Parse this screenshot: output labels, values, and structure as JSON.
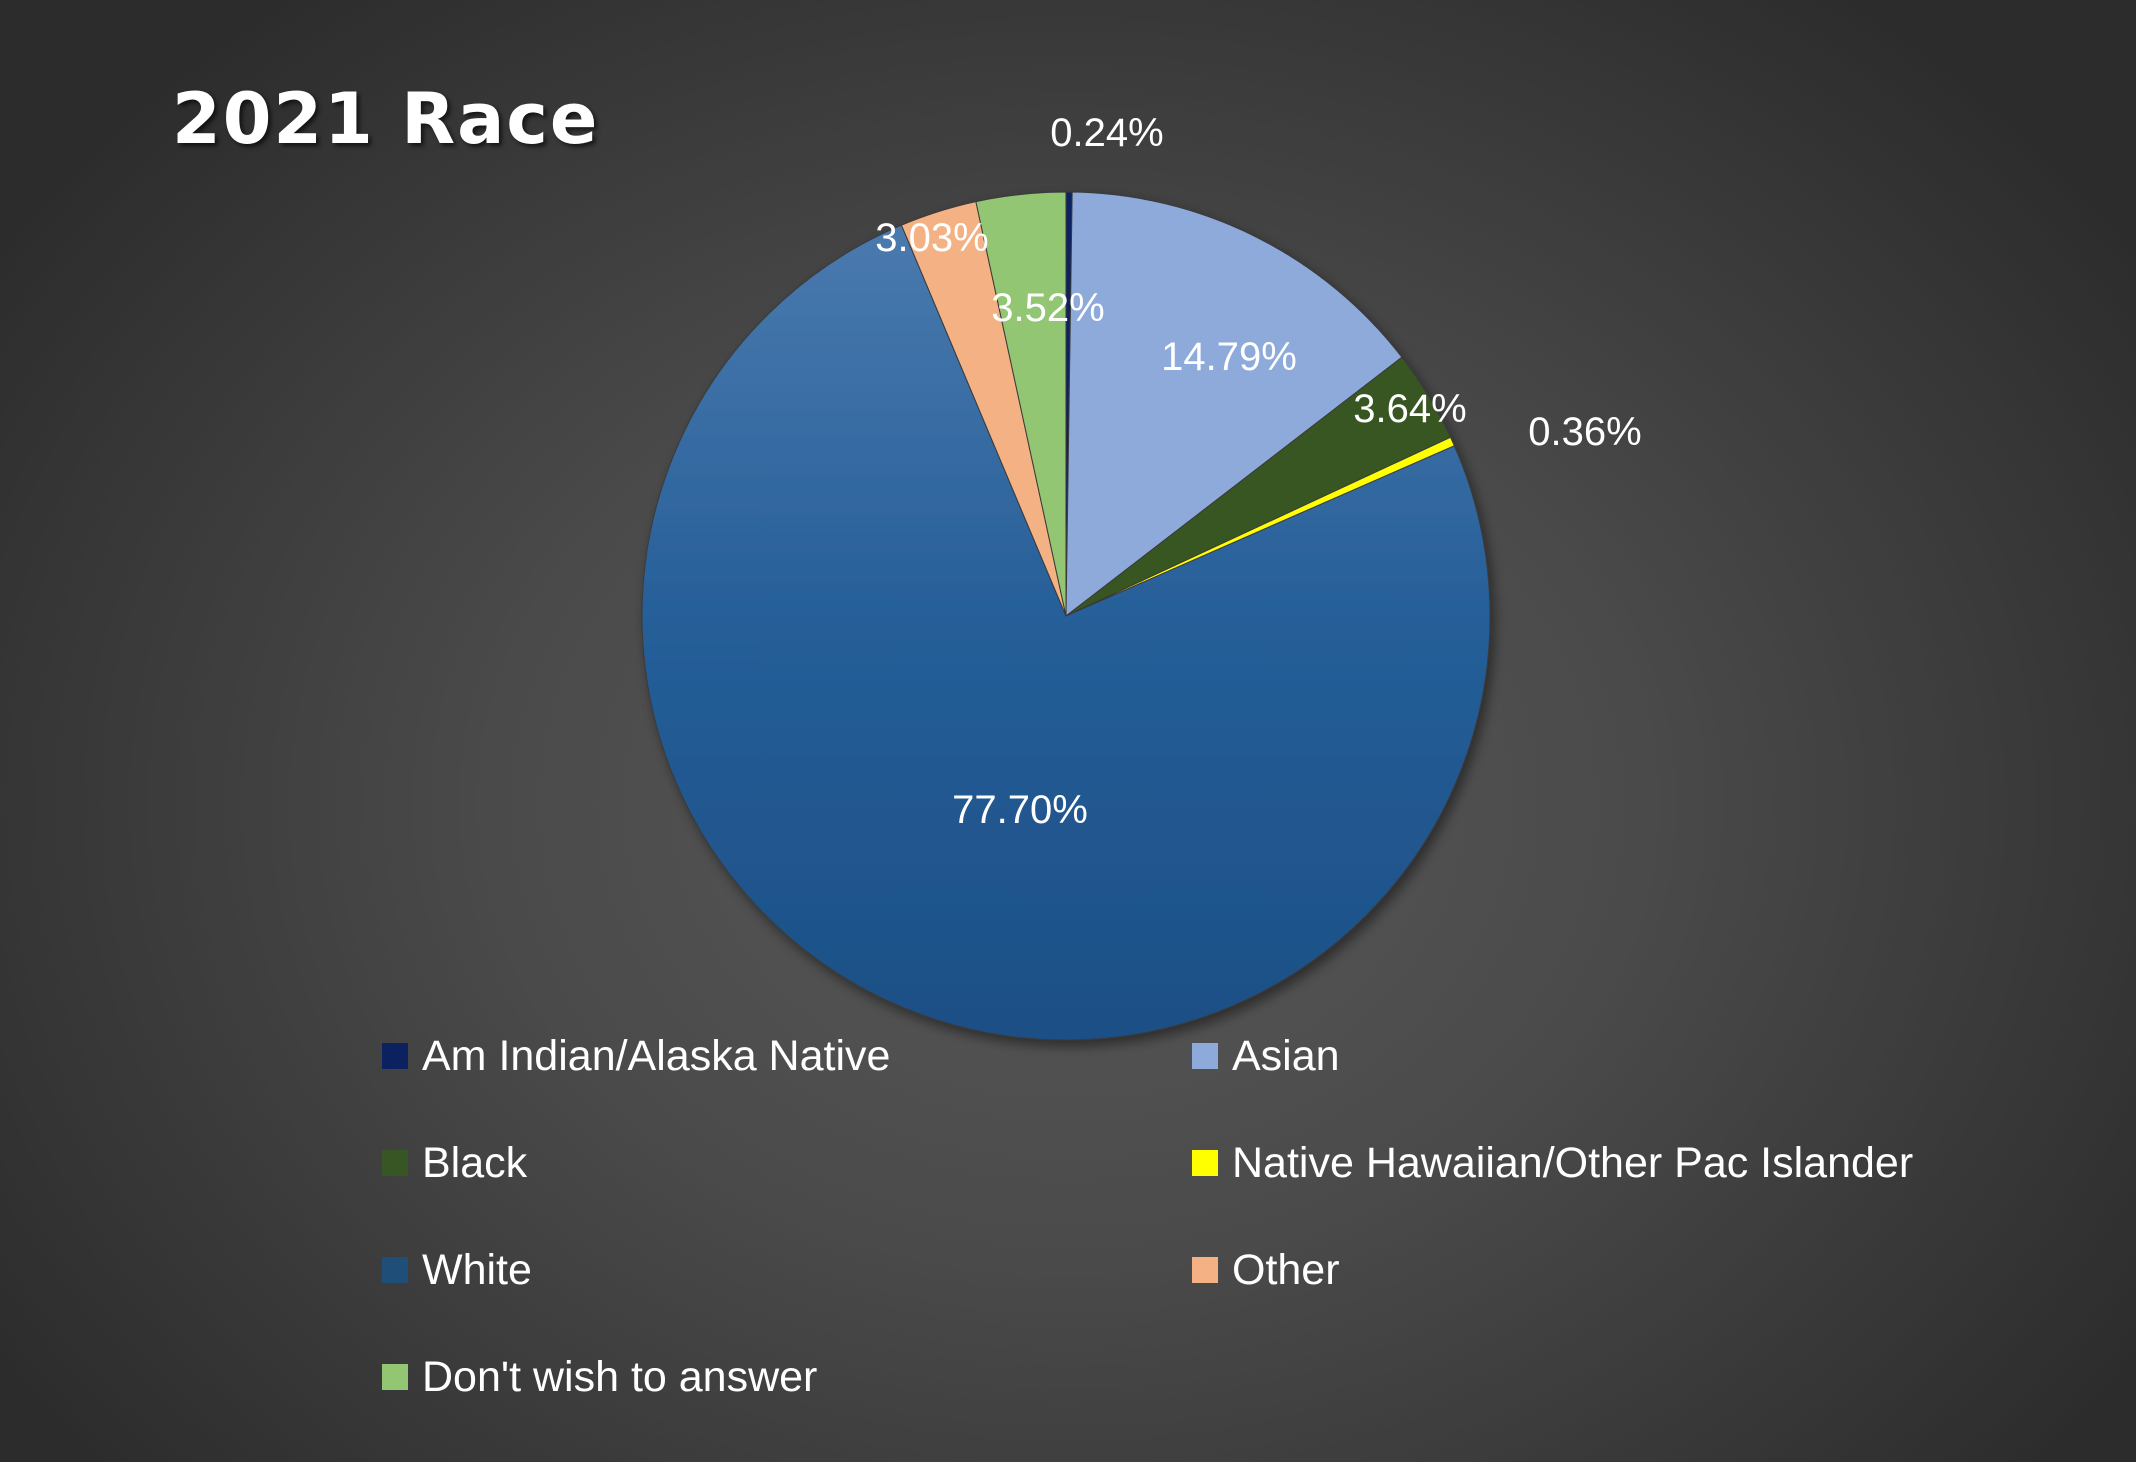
{
  "chart_data": {
    "type": "pie",
    "title": "2021 Race",
    "slices": [
      {
        "label": "Am Indian/Alaska Native",
        "value": 0.24,
        "display": "0.24%",
        "color": "#0b2160"
      },
      {
        "label": "Asian",
        "value": 14.79,
        "display": "14.79%",
        "color": "#8eaadb"
      },
      {
        "label": "Black",
        "value": 3.64,
        "display": "3.64%",
        "color": "#375623"
      },
      {
        "label": "Native Hawaiian/Other Pac Islander",
        "value": 0.36,
        "display": "0.36%",
        "color": "#ffff00"
      },
      {
        "label": "White",
        "value": 77.7,
        "display": "77.70%",
        "color": "#1f4e79"
      },
      {
        "label": "Other",
        "value": 3.03,
        "display": "3.03%",
        "color": "#f4b183"
      },
      {
        "label": "Don't wish to answer",
        "value": 3.52,
        "display": "3.52%",
        "color": "#92c672"
      }
    ],
    "legend_position": "bottom"
  }
}
